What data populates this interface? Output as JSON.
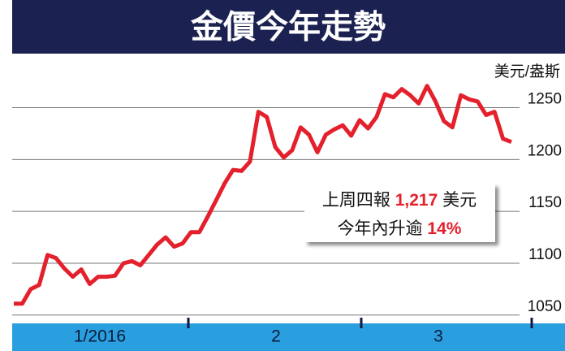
{
  "chart_data": {
    "type": "line",
    "title": "金價今年走勢",
    "y_axis_label": "美元/盎斯",
    "x_labels": [
      "1/2016",
      "2",
      "3"
    ],
    "color": "#e3202b",
    "values": [
      1061,
      1061,
      1075,
      1079,
      1108,
      1105,
      1095,
      1087,
      1094,
      1080,
      1087,
      1087,
      1088,
      1100,
      1102,
      1098,
      1108,
      1118,
      1125,
      1116,
      1119,
      1130,
      1130,
      1145,
      1161,
      1177,
      1190,
      1189,
      1198,
      1246,
      1241,
      1212,
      1202,
      1209,
      1231,
      1224,
      1207,
      1224,
      1229,
      1233,
      1223,
      1238,
      1230,
      1241,
      1263,
      1260,
      1268,
      1262,
      1254,
      1271,
      1256,
      1237,
      1231,
      1262,
      1258,
      1256,
      1243,
      1246,
      1220,
      1217
    ],
    "ylim": [
      1042,
      1299
    ],
    "yticks": [
      1050,
      1100,
      1150,
      1200,
      1250
    ],
    "grid": true,
    "annotation": {
      "line1": [
        "上周四報",
        "1,217",
        "美元"
      ],
      "line2": [
        "今年內升逾",
        "14%"
      ]
    }
  }
}
